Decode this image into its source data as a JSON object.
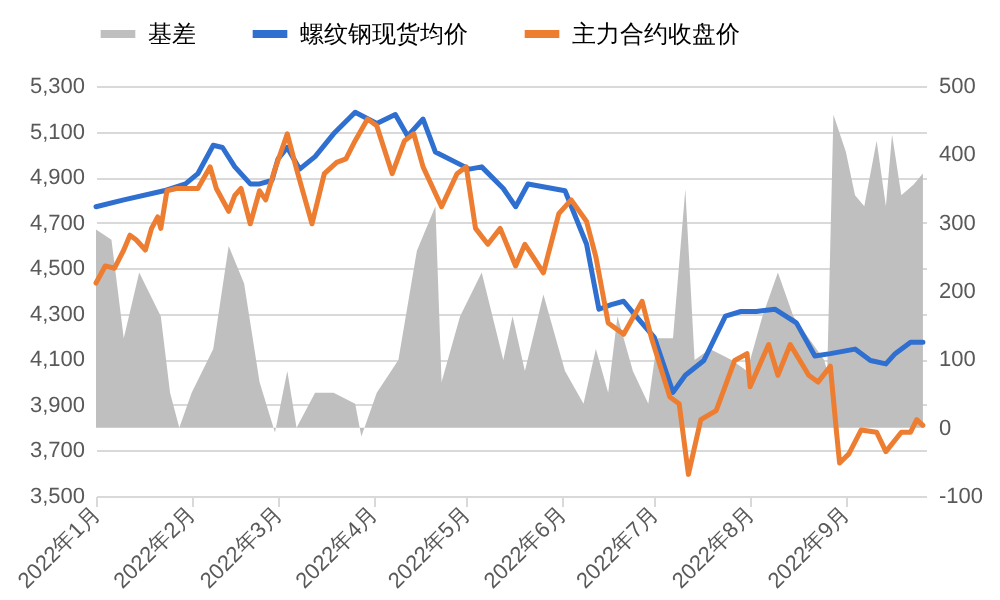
{
  "chart_data": {
    "type": "line",
    "series": [
      {
        "name": "基差",
        "type": "area",
        "axis": "y2",
        "color": "#bfbfbf",
        "x": [
          "2022-01-01",
          "2022-01-06",
          "2022-01-10",
          "2022-01-15",
          "2022-01-22",
          "2022-01-25",
          "2022-01-28",
          "2022-02-01",
          "2022-02-08",
          "2022-02-13",
          "2022-02-18",
          "2022-02-23",
          "2022-02-28",
          "2022-03-04",
          "2022-03-07",
          "2022-03-13",
          "2022-03-19",
          "2022-03-26",
          "2022-03-28",
          "2022-04-02",
          "2022-04-09",
          "2022-04-15",
          "2022-04-21",
          "2022-04-23",
          "2022-04-29",
          "2022-05-06",
          "2022-05-13",
          "2022-05-16",
          "2022-05-20",
          "2022-05-26",
          "2022-06-02",
          "2022-06-08",
          "2022-06-12",
          "2022-06-16",
          "2022-06-19",
          "2022-06-24",
          "2022-06-29",
          "2022-07-02",
          "2022-07-07",
          "2022-07-11",
          "2022-07-14",
          "2022-07-19",
          "2022-07-26",
          "2022-07-31",
          "2022-08-05",
          "2022-08-10",
          "2022-08-15",
          "2022-08-20",
          "2022-08-25",
          "2022-08-26",
          "2022-08-28",
          "2022-09-01",
          "2022-09-04",
          "2022-09-07",
          "2022-09-11",
          "2022-09-14",
          "2022-09-16",
          "2022-09-19",
          "2022-09-23",
          "2022-09-26"
        ],
        "values": [
          290,
          275,
          131,
          227,
          163,
          51,
          0,
          51,
          115,
          266,
          211,
          67,
          -7,
          83,
          0,
          51,
          51,
          35,
          -13,
          51,
          99,
          259,
          324,
          67,
          163,
          227,
          99,
          163,
          83,
          195,
          83,
          35,
          115,
          51,
          163,
          83,
          35,
          131,
          131,
          349,
          99,
          115,
          99,
          83,
          163,
          227,
          163,
          131,
          99,
          83,
          458,
          404,
          340,
          324,
          420,
          324,
          429,
          340,
          356,
          372
        ]
      },
      {
        "name": "螺纹钢现货均价",
        "color": "#2e6fd0",
        "x": [
          "2022-01-01",
          "2022-01-10",
          "2022-01-23",
          "2022-01-30",
          "2022-02-03",
          "2022-02-08",
          "2022-02-11",
          "2022-02-15",
          "2022-02-20",
          "2022-02-23",
          "2022-02-27",
          "2022-03-01",
          "2022-03-04",
          "2022-03-08",
          "2022-03-13",
          "2022-03-19",
          "2022-03-26",
          "2022-04-02",
          "2022-04-08",
          "2022-04-12",
          "2022-04-17",
          "2022-04-21",
          "2022-05-02",
          "2022-05-06",
          "2022-05-13",
          "2022-05-17",
          "2022-05-21",
          "2022-06-02",
          "2022-06-09",
          "2022-06-13",
          "2022-06-17",
          "2022-06-21",
          "2022-06-25",
          "2022-07-01",
          "2022-07-07",
          "2022-07-11",
          "2022-07-17",
          "2022-07-24",
          "2022-07-29",
          "2022-08-03",
          "2022-08-09",
          "2022-08-16",
          "2022-08-22",
          "2022-08-27",
          "2022-09-04",
          "2022-09-09",
          "2022-09-14",
          "2022-09-17",
          "2022-09-22",
          "2022-09-26"
        ],
        "values": [
          4770,
          4800,
          4840,
          4870,
          4915,
          5040,
          5030,
          4945,
          4870,
          4870,
          4885,
          4980,
          5030,
          4935,
          4990,
          5090,
          5185,
          5135,
          5175,
          5080,
          5155,
          5010,
          4935,
          4945,
          4850,
          4770,
          4870,
          4840,
          4605,
          4320,
          4340,
          4355,
          4290,
          4195,
          3955,
          4030,
          4095,
          4290,
          4310,
          4310,
          4320,
          4260,
          4115,
          4125,
          4145,
          4095,
          4080,
          4125,
          4175,
          4175
        ]
      },
      {
        "name": "主力合约收盘价",
        "color": "#ed7d31",
        "x": [
          "2022-01-01",
          "2022-01-04",
          "2022-01-07",
          "2022-01-10",
          "2022-01-12",
          "2022-01-14",
          "2022-01-17",
          "2022-01-19",
          "2022-01-21",
          "2022-01-22",
          "2022-01-24",
          "2022-01-27",
          "2022-02-03",
          "2022-02-07",
          "2022-02-09",
          "2022-02-13",
          "2022-02-15",
          "2022-02-17",
          "2022-02-20",
          "2022-02-23",
          "2022-02-25",
          "2022-02-28",
          "2022-03-04",
          "2022-03-07",
          "2022-03-12",
          "2022-03-16",
          "2022-03-20",
          "2022-03-23",
          "2022-03-26",
          "2022-03-30",
          "2022-04-02",
          "2022-04-07",
          "2022-04-11",
          "2022-04-14",
          "2022-04-17",
          "2022-04-23",
          "2022-04-28",
          "2022-05-01",
          "2022-05-04",
          "2022-05-08",
          "2022-05-12",
          "2022-05-17",
          "2022-05-20",
          "2022-05-26",
          "2022-05-31",
          "2022-06-04",
          "2022-06-09",
          "2022-06-12",
          "2022-06-16",
          "2022-06-21",
          "2022-06-27",
          "2022-06-30",
          "2022-07-06",
          "2022-07-09",
          "2022-07-12",
          "2022-07-16",
          "2022-07-21",
          "2022-07-27",
          "2022-07-31",
          "2022-08-01",
          "2022-08-07",
          "2022-08-10",
          "2022-08-14",
          "2022-08-20",
          "2022-08-23",
          "2022-08-27",
          "2022-08-29",
          "2022-08-30",
          "2022-09-02",
          "2022-09-06",
          "2022-09-11",
          "2022-09-14",
          "2022-09-19",
          "2022-09-22",
          "2022-09-24",
          "2022-09-26"
        ],
        "values": [
          4435,
          4510,
          4500,
          4580,
          4645,
          4625,
          4580,
          4675,
          4725,
          4675,
          4840,
          4850,
          4850,
          4945,
          4850,
          4750,
          4820,
          4850,
          4695,
          4840,
          4800,
          4935,
          5090,
          4935,
          4695,
          4915,
          4965,
          4980,
          5060,
          5155,
          5125,
          4915,
          5060,
          5090,
          4945,
          4770,
          4915,
          4945,
          4675,
          4605,
          4675,
          4510,
          4605,
          4480,
          4740,
          4800,
          4705,
          4550,
          4260,
          4210,
          4355,
          4195,
          3935,
          3905,
          3595,
          3835,
          3875,
          4095,
          4125,
          3980,
          4165,
          4030,
          4165,
          4030,
          4000,
          4070,
          3780,
          3645,
          3685,
          3790,
          3780,
          3695,
          3780,
          3780,
          3835,
          3810
        ]
      }
    ],
    "xlim": [
      "2022-01-01",
      "2022-09-27"
    ],
    "xticks": [
      {
        "value": "2022-01-01",
        "label": "2022年1月"
      },
      {
        "value": "2022-02-01",
        "label": "2022年2月"
      },
      {
        "value": "2022-03-01",
        "label": "2022年3月"
      },
      {
        "value": "2022-04-01",
        "label": "2022年4月"
      },
      {
        "value": "2022-05-01",
        "label": "2022年5月"
      },
      {
        "value": "2022-06-01",
        "label": "2022年6月"
      },
      {
        "value": "2022-07-01",
        "label": "2022年7月"
      },
      {
        "value": "2022-08-01",
        "label": "2022年8月"
      },
      {
        "value": "2022-09-01",
        "label": "2022年9月"
      }
    ],
    "ylim": [
      3500,
      5300
    ],
    "yticks": [
      {
        "value": 3500,
        "label": "3,500"
      },
      {
        "value": 3700,
        "label": "3,700"
      },
      {
        "value": 3900,
        "label": "3,900"
      },
      {
        "value": 4100,
        "label": "4,100"
      },
      {
        "value": 4300,
        "label": "4,300"
      },
      {
        "value": 4500,
        "label": "4,500"
      },
      {
        "value": 4700,
        "label": "4,700"
      },
      {
        "value": 4900,
        "label": "4,900"
      },
      {
        "value": 5100,
        "label": "5,100"
      },
      {
        "value": 5300,
        "label": "5,300"
      }
    ],
    "y2lim": [
      -100,
      500
    ],
    "y2ticks": [
      -100,
      0,
      100,
      200,
      300,
      400,
      500
    ],
    "grid": "y",
    "legend": "top",
    "marker": "none",
    "line_style": "solid"
  }
}
